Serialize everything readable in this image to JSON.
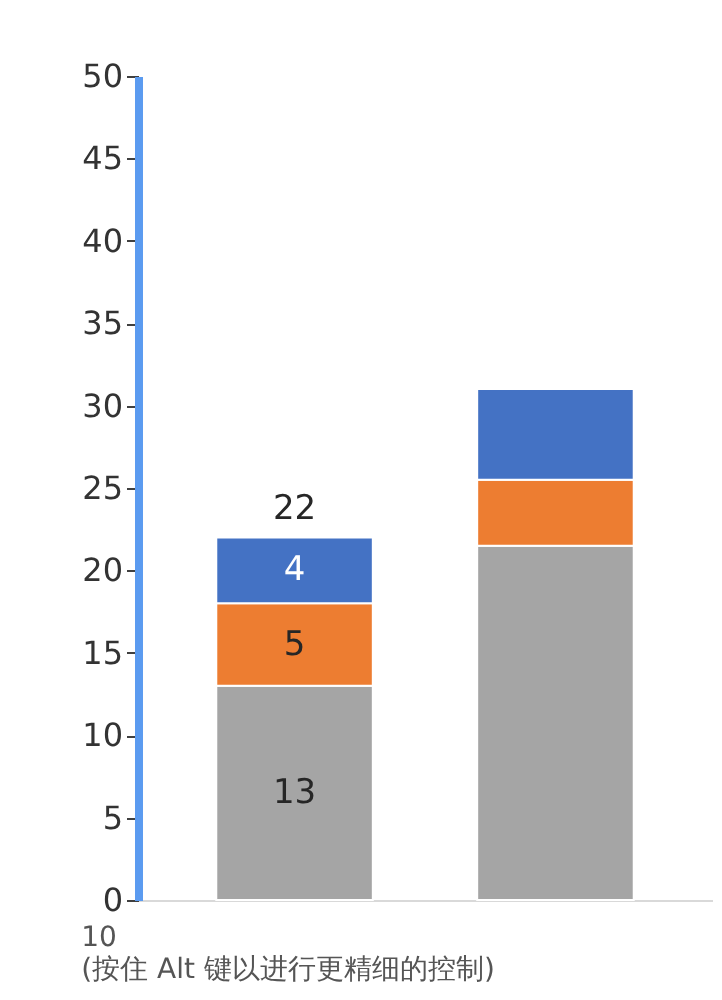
{
  "chart_data": {
    "type": "bar",
    "stacked": true,
    "categories": [
      null,
      null
    ],
    "series": [
      {
        "color": "#a5a5a5",
        "values": [
          13,
          21.5
        ],
        "value_labels": [
          "13",
          null
        ]
      },
      {
        "color": "#ed7d31",
        "values": [
          5,
          4
        ],
        "value_labels": [
          "5",
          null
        ]
      },
      {
        "color": "#4472c4",
        "values": [
          4,
          5.5
        ],
        "value_labels": [
          "4",
          null
        ]
      }
    ],
    "totals": [
      "22",
      null
    ],
    "ylim": [
      0,
      50
    ],
    "yticks": [
      0,
      5,
      10,
      15,
      20,
      25,
      30,
      35,
      40,
      45,
      50
    ],
    "grid": false,
    "tick_labels": "y",
    "annotations": [
      "10",
      "(按住 Alt 键以进行更精细的控制)"
    ]
  }
}
